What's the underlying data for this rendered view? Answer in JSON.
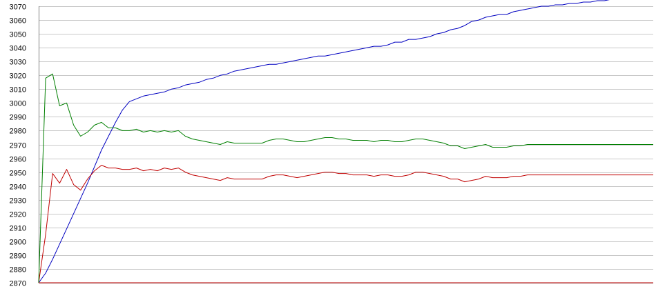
{
  "chart_data": {
    "type": "line",
    "title": "",
    "xlabel": "",
    "ylabel": "",
    "ylim": [
      2870,
      3070
    ],
    "yticks": [
      3070,
      3060,
      3050,
      3040,
      3030,
      3020,
      3010,
      3000,
      2990,
      2980,
      2970,
      2960,
      2950,
      2940,
      2930,
      2920,
      2910,
      2900,
      2890,
      2880,
      2870
    ],
    "grid": true,
    "legend": "none",
    "colors": {
      "grid": "#c8c8c8",
      "axis": "#7f7f7f",
      "background": "#ffffff"
    },
    "x": [
      1,
      2,
      3,
      4,
      5,
      6,
      7,
      8,
      9,
      10,
      11,
      12,
      13,
      14,
      15,
      16,
      17,
      18,
      19,
      20,
      21,
      22,
      23,
      24,
      25,
      26,
      27,
      28,
      29,
      30,
      31,
      32,
      33,
      34,
      35,
      36,
      37,
      38,
      39,
      40,
      41,
      42,
      43,
      44,
      45,
      46,
      47,
      48,
      49,
      50,
      51,
      52,
      53,
      54,
      55,
      56,
      57,
      58,
      59,
      60,
      61,
      62,
      63,
      64,
      65,
      66,
      67,
      68,
      69,
      70,
      71,
      72,
      73,
      74,
      75,
      76,
      77,
      78,
      79,
      80,
      81,
      82,
      83,
      84,
      85,
      86,
      87,
      88,
      89
    ],
    "series": [
      {
        "color": "#0000c0",
        "values": [
          2870,
          2877,
          2887,
          2898,
          2909,
          2920,
          2931,
          2942,
          2954,
          2966,
          2976,
          2986,
          2995,
          3001,
          3003,
          3005,
          3006,
          3007,
          3008,
          3010,
          3011,
          3013,
          3014,
          3015,
          3017,
          3018,
          3020,
          3021,
          3023,
          3024,
          3025,
          3026,
          3027,
          3028,
          3028,
          3029,
          3030,
          3031,
          3032,
          3033,
          3034,
          3034,
          3035,
          3036,
          3037,
          3038,
          3039,
          3040,
          3041,
          3041,
          3042,
          3044,
          3044,
          3046,
          3046,
          3047,
          3048,
          3050,
          3051,
          3053,
          3054,
          3056,
          3059,
          3060,
          3062,
          3063,
          3064,
          3064,
          3066,
          3067,
          3068,
          3069,
          3070,
          3070,
          3071,
          3071,
          3072,
          3072,
          3073,
          3073,
          3074,
          3074,
          3075,
          3075,
          3076,
          3076,
          3077,
          3077,
          3078
        ]
      },
      {
        "color": "#c00000",
        "values": [
          2870,
          2905,
          2949,
          2942,
          2952,
          2941,
          2937,
          2945,
          2951,
          2955,
          2953,
          2953,
          2952,
          2952,
          2953,
          2951,
          2952,
          2951,
          2953,
          2952,
          2953,
          2950,
          2948,
          2947,
          2946,
          2945,
          2944,
          2946,
          2945,
          2945,
          2945,
          2945,
          2945,
          2947,
          2948,
          2948,
          2947,
          2946,
          2947,
          2948,
          2949,
          2950,
          2950,
          2949,
          2949,
          2948,
          2948,
          2948,
          2947,
          2948,
          2948,
          2947,
          2947,
          2948,
          2950,
          2950,
          2949,
          2948,
          2947,
          2945,
          2945,
          2943,
          2944,
          2945,
          2947,
          2946,
          2946,
          2946,
          2947,
          2947,
          2948,
          2948,
          2948,
          2948,
          2948,
          2948,
          2948,
          2948,
          2948,
          2948,
          2948,
          2948,
          2948,
          2948,
          2948,
          2948,
          2948,
          2948,
          2948
        ]
      },
      {
        "color": "#007f00",
        "values": [
          2870,
          3018,
          3021,
          2998,
          3000,
          2984,
          2976,
          2979,
          2984,
          2986,
          2982,
          2982,
          2980,
          2980,
          2981,
          2979,
          2980,
          2979,
          2980,
          2979,
          2980,
          2976,
          2974,
          2973,
          2972,
          2971,
          2970,
          2972,
          2971,
          2971,
          2971,
          2971,
          2971,
          2973,
          2974,
          2974,
          2973,
          2972,
          2972,
          2973,
          2974,
          2975,
          2975,
          2974,
          2974,
          2973,
          2973,
          2973,
          2972,
          2973,
          2973,
          2972,
          2972,
          2973,
          2974,
          2974,
          2973,
          2972,
          2971,
          2969,
          2969,
          2967,
          2968,
          2969,
          2970,
          2968,
          2968,
          2968,
          2969,
          2969,
          2970,
          2970,
          2970,
          2970,
          2970,
          2970,
          2970,
          2970,
          2970,
          2970,
          2970,
          2970,
          2970,
          2970,
          2970,
          2970,
          2970,
          2970,
          2970
        ]
      },
      {
        "color": "#c00000",
        "values": [
          2870,
          2870,
          2870,
          2870,
          2870,
          2870,
          2870,
          2870,
          2870,
          2870,
          2870,
          2870,
          2870,
          2870,
          2870,
          2870,
          2870,
          2870,
          2870,
          2870,
          2870,
          2870,
          2870,
          2870,
          2870,
          2870,
          2870,
          2870,
          2870,
          2870,
          2870,
          2870,
          2870,
          2870,
          2870,
          2870,
          2870,
          2870,
          2870,
          2870,
          2870,
          2870,
          2870,
          2870,
          2870,
          2870,
          2870,
          2870,
          2870,
          2870,
          2870,
          2870,
          2870,
          2870,
          2870,
          2870,
          2870,
          2870,
          2870,
          2870,
          2870,
          2870,
          2870,
          2870,
          2870,
          2870,
          2870,
          2870,
          2870,
          2870,
          2870,
          2870,
          2870,
          2870,
          2870,
          2870,
          2870,
          2870,
          2870,
          2870,
          2870,
          2870,
          2870,
          2870,
          2870,
          2870,
          2870,
          2870,
          2870
        ]
      }
    ]
  }
}
